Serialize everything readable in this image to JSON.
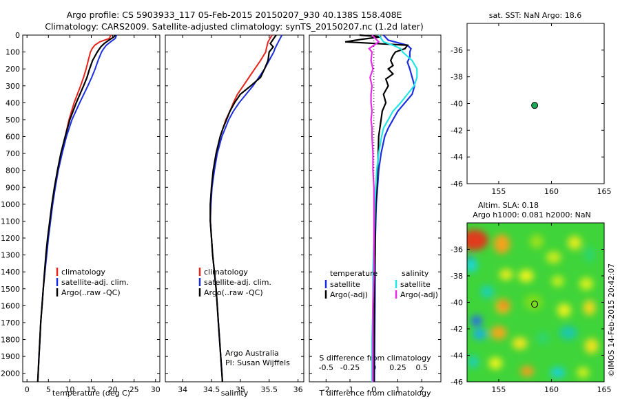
{
  "titles": {
    "line1": "Argo profile: CS 5903933_117 05-Feb-2015 20150207_930 40.138S 158.408E",
    "line2": "Climatology: CARS2009. Satellite-adjusted climatology: synTS_20150207.nc (1.2d later)",
    "map1": "sat. SST: NaN Argo: 18.6",
    "map2a": "Altim. SLA: 0.18",
    "map2b": "Argo h1000: 0.081 h2000: NaN",
    "credit": "©IMOS 14-Feb-2015 20:42:07"
  },
  "colors": {
    "clim": "#e8231a",
    "sat": "#1a2ee0",
    "argo": "#000000",
    "sat_s": "#22e6e6",
    "argo_s": "#e62ae6",
    "marker": "#1fa85a"
  },
  "chart_data": [
    {
      "type": "line",
      "xlabel": "temperature (deg C)",
      "xlim": [
        -1,
        31
      ],
      "ylim": [
        0,
        2050
      ],
      "xticks": [
        0,
        5,
        10,
        15,
        20,
        25,
        30
      ],
      "yticks": [
        0,
        100,
        200,
        300,
        400,
        500,
        600,
        700,
        800,
        900,
        1000,
        1100,
        1200,
        1300,
        1400,
        1500,
        1600,
        1700,
        1800,
        1900,
        2000
      ],
      "legend": [
        "climatology",
        "satellite-adj. clim.",
        "Argo(..raw -QC)"
      ],
      "series": [
        {
          "key": "clim",
          "depth": [
            0,
            20,
            40,
            60,
            80,
            100,
            150,
            200,
            250,
            300,
            400,
            500,
            600,
            700,
            800,
            900,
            1000,
            1100,
            1200,
            1300,
            1400,
            1500,
            1600,
            1700,
            1800,
            1900,
            2000,
            2050
          ],
          "values": [
            19.6,
            19.2,
            17.0,
            15.8,
            15.2,
            14.8,
            14.3,
            13.8,
            13.2,
            12.5,
            11.0,
            9.8,
            8.9,
            8.0,
            7.2,
            6.5,
            5.9,
            5.4,
            4.9,
            4.5,
            4.1,
            3.8,
            3.5,
            3.2,
            3.0,
            2.8,
            2.6,
            2.5
          ]
        },
        {
          "key": "sat",
          "depth": [
            0,
            20,
            40,
            60,
            80,
            100,
            150,
            200,
            250,
            300,
            400,
            500,
            600,
            700,
            800,
            900,
            1000,
            1100,
            1200,
            1300,
            1400,
            1500,
            1600,
            1700,
            1800,
            1900,
            2000,
            2050
          ],
          "values": [
            20.9,
            20.6,
            19.5,
            18.5,
            17.9,
            17.4,
            16.6,
            15.9,
            15.1,
            14.2,
            12.3,
            10.5,
            9.2,
            8.2,
            7.3,
            6.6,
            6.0,
            5.5,
            5.0,
            4.6,
            4.2,
            3.8,
            3.5,
            3.2,
            3.0,
            2.8,
            2.6,
            2.5
          ]
        },
        {
          "key": "argo",
          "depth": [
            0,
            10,
            30,
            50,
            70,
            100,
            150,
            200,
            250,
            300,
            400,
            500,
            600,
            700,
            800,
            900,
            1000,
            1100,
            1200,
            1300,
            1400,
            1500,
            1600,
            1700,
            1800,
            1900,
            2000,
            2050
          ],
          "values": [
            20.6,
            20.3,
            19.1,
            18.0,
            17.2,
            16.4,
            15.3,
            14.6,
            14.0,
            13.2,
            11.5,
            10.0,
            8.9,
            7.9,
            7.1,
            6.4,
            5.8,
            5.3,
            4.8,
            4.4,
            4.1,
            3.8,
            3.5,
            3.2,
            3.0,
            2.8,
            2.6,
            2.5
          ]
        }
      ]
    },
    {
      "type": "line",
      "xlabel": "salinity",
      "xlim": [
        33.7,
        36.1
      ],
      "ylim": [
        0,
        2050
      ],
      "xticks": [
        34,
        34.5,
        35,
        35.5,
        36
      ],
      "legend": [
        "climatology",
        "satellite-adj. clim.",
        "Argo(..raw -QC)"
      ],
      "annotation": [
        "Argo Australia",
        "PI: Susan Wijffels"
      ],
      "series": [
        {
          "key": "clim",
          "depth": [
            0,
            40,
            80,
            100,
            150,
            200,
            250,
            300,
            350,
            400,
            450,
            500,
            550,
            600,
            700,
            800,
            900,
            1000,
            1100,
            1200,
            1300,
            1400,
            1500,
            1600,
            1700,
            1800,
            1900,
            2000,
            2050
          ],
          "values": [
            35.55,
            35.48,
            35.45,
            35.44,
            35.35,
            35.25,
            35.15,
            35.05,
            34.95,
            34.88,
            34.82,
            34.75,
            34.7,
            34.65,
            34.58,
            34.53,
            34.5,
            34.48,
            34.48,
            34.5,
            34.52,
            34.55,
            34.58,
            34.6,
            34.62,
            34.64,
            34.66,
            34.68,
            34.69
          ]
        },
        {
          "key": "sat",
          "depth": [
            0,
            40,
            80,
            100,
            150,
            200,
            250,
            300,
            350,
            400,
            450,
            500,
            550,
            600,
            700,
            800,
            900,
            1000,
            1100,
            1200,
            1300,
            1400,
            1500,
            1600,
            1700,
            1800,
            1900,
            2000,
            2050
          ],
          "values": [
            35.72,
            35.66,
            35.6,
            35.58,
            35.5,
            35.42,
            35.32,
            35.22,
            35.1,
            34.98,
            34.88,
            34.8,
            34.74,
            34.68,
            34.6,
            34.55,
            34.51,
            34.49,
            34.48,
            34.5,
            34.52,
            34.55,
            34.58,
            34.6,
            34.62,
            34.64,
            34.66,
            34.68,
            34.69
          ]
        },
        {
          "key": "argo",
          "depth": [
            0,
            20,
            50,
            70,
            100,
            150,
            200,
            250,
            300,
            350,
            400,
            450,
            500,
            550,
            600,
            700,
            800,
            900,
            1000,
            1100,
            1200,
            1300,
            1400,
            1500,
            1600,
            1700,
            1800,
            1900,
            2000,
            2050
          ],
          "values": [
            35.62,
            35.58,
            35.52,
            35.57,
            35.5,
            35.48,
            35.42,
            35.35,
            35.18,
            35.0,
            34.9,
            34.82,
            34.76,
            34.7,
            34.65,
            34.58,
            34.53,
            34.5,
            34.48,
            34.48,
            34.5,
            34.52,
            34.55,
            34.58,
            34.6,
            34.62,
            34.64,
            34.66,
            34.68,
            34.69
          ]
        }
      ]
    },
    {
      "type": "line",
      "xlabel": "T difference from climatology",
      "xlabel_top": "S difference from climatology",
      "xlim": [
        -2.7,
        2.8
      ],
      "ylim": [
        0,
        2050
      ],
      "xticks": [
        -2,
        -1,
        0,
        1,
        2
      ],
      "xticks_s": [
        {
          "v": -0.5,
          "t": "-0.5"
        },
        {
          "v": -0.25,
          "t": "-0.25"
        },
        {
          "v": 0,
          "t": "0"
        },
        {
          "v": 0.25,
          "t": "0.25"
        },
        {
          "v": 0.5,
          "t": "0.5"
        }
      ],
      "legend_left_title": "temperature",
      "legend_right_title": "salinity",
      "legend_left": [
        "satellite",
        "Argo(-adj)"
      ],
      "legend_right": [
        "satellite",
        "Argo(-adj)"
      ],
      "series": [
        {
          "key": "sat",
          "depth": [
            0,
            30,
            60,
            80,
            100,
            130,
            160,
            200,
            250,
            300,
            350,
            400,
            450,
            500,
            550,
            600,
            700,
            800,
            900,
            1000,
            1100,
            1200,
            1300,
            1400,
            1600,
            1800,
            2000,
            2050
          ],
          "values": [
            0.4,
            0.6,
            1.4,
            1.55,
            1.5,
            1.5,
            1.4,
            1.5,
            1.6,
            1.7,
            1.6,
            1.3,
            1.0,
            0.8,
            0.6,
            0.45,
            0.3,
            0.2,
            0.15,
            0.1,
            0.08,
            0.06,
            0.05,
            0.05,
            0.04,
            0.03,
            0.02,
            0.02
          ]
        },
        {
          "key": "argo",
          "depth": [
            0,
            10,
            25,
            40,
            60,
            80,
            100,
            120,
            150,
            180,
            200,
            230,
            260,
            300,
            350,
            400,
            450,
            500,
            550,
            600,
            700,
            800,
            900,
            1000,
            1100,
            1200,
            1300,
            1400,
            1600,
            1800,
            2000,
            2050
          ],
          "values": [
            -0.6,
            0.3,
            -0.5,
            -1.2,
            1.4,
            1.3,
            0.9,
            0.8,
            0.7,
            0.8,
            0.6,
            0.8,
            0.5,
            0.6,
            0.4,
            0.5,
            0.35,
            0.3,
            0.25,
            0.2,
            0.18,
            0.15,
            0.12,
            0.08,
            0.05,
            0.05,
            0.05,
            0.03,
            0.02,
            0.01,
            0.0,
            0.0
          ]
        },
        {
          "key": "sat_s",
          "depth": [
            0,
            40,
            60,
            80,
            100,
            150,
            200,
            250,
            300,
            350,
            400,
            450,
            500,
            550,
            600,
            700,
            800,
            900,
            1000,
            1200,
            1400,
            1600,
            1800,
            2000,
            2050
          ],
          "values": [
            0.05,
            0.1,
            0.2,
            0.28,
            0.3,
            0.4,
            0.45,
            0.45,
            0.42,
            0.35,
            0.28,
            0.2,
            0.15,
            0.1,
            0.08,
            0.05,
            0.03,
            0.02,
            0.01,
            0.0,
            -0.01,
            -0.01,
            -0.02,
            -0.02,
            -0.02
          ]
        },
        {
          "key": "argo_s",
          "depth": [
            0,
            40,
            80,
            100,
            150,
            200,
            250,
            300,
            350,
            400,
            450,
            500,
            550,
            600,
            700,
            800,
            900,
            1000,
            1200,
            1400,
            1600,
            1800,
            2000,
            2050
          ],
          "values": [
            -0.02,
            0.05,
            -0.05,
            -0.02,
            -0.03,
            -0.01,
            -0.04,
            -0.02,
            -0.03,
            -0.03,
            -0.02,
            -0.03,
            -0.02,
            -0.02,
            -0.01,
            -0.01,
            0.0,
            0.0,
            0.0,
            0.0,
            -0.01,
            -0.01,
            -0.01,
            -0.01
          ]
        }
      ]
    },
    {
      "type": "scatter",
      "title": "sat. SST: NaN Argo: 18.6",
      "xlim": [
        152,
        165
      ],
      "ylim": [
        -46,
        -34
      ],
      "xticks": [
        155,
        160,
        165
      ],
      "yticks": [
        -36,
        -38,
        -40,
        -42,
        -44,
        -46
      ],
      "points": [
        {
          "x": 158.408,
          "y": -40.138
        }
      ]
    },
    {
      "type": "heatmap",
      "title": "Altim. SLA: 0.18",
      "subtitle": "Argo h1000: 0.081 h2000: NaN",
      "xlim": [
        152,
        165
      ],
      "ylim": [
        -46,
        -34
      ],
      "xticks": [
        155,
        160,
        165
      ],
      "yticks": [
        -36,
        -38,
        -40,
        -42,
        -44,
        -46
      ],
      "points": [
        {
          "x": 158.408,
          "y": -40.138
        }
      ]
    }
  ]
}
